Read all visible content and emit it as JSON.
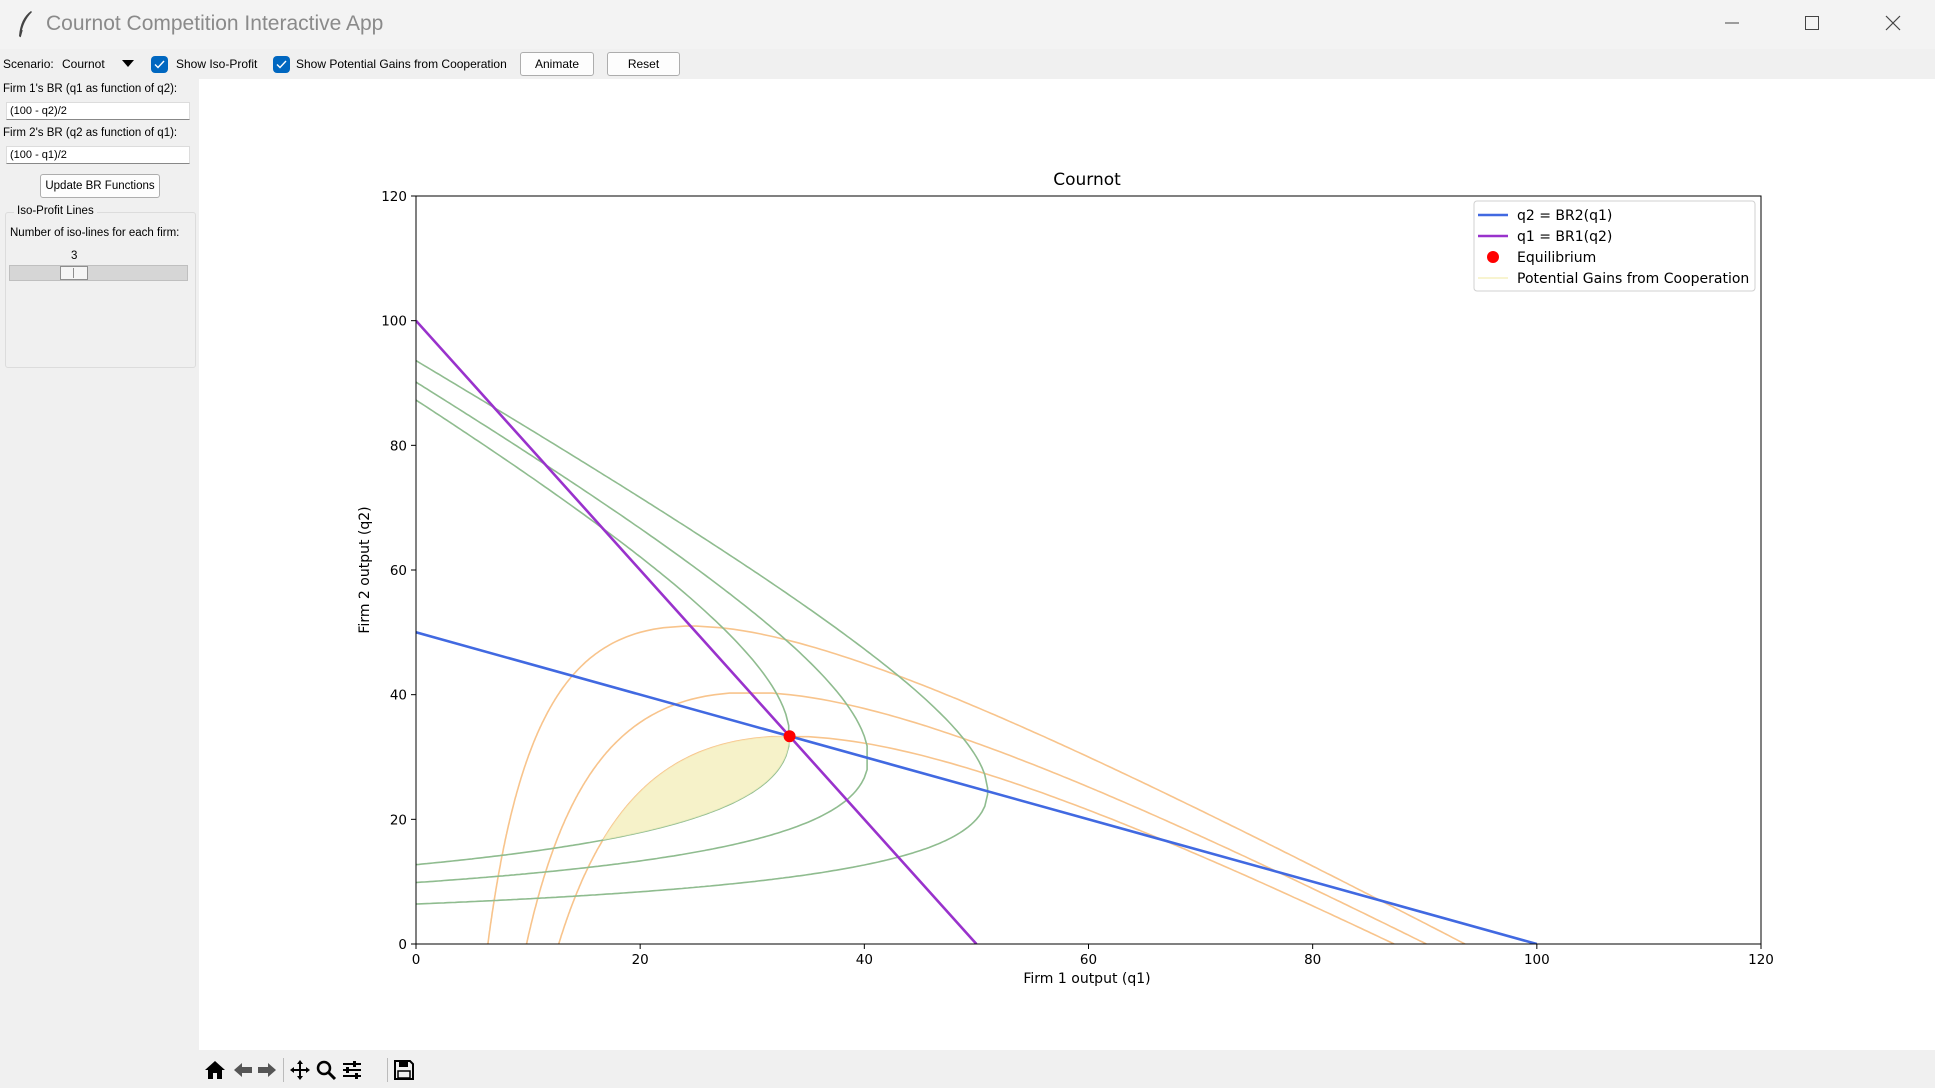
{
  "window": {
    "title": "Cournot Competition Interactive App",
    "icons": [
      "feather-icon",
      "minimize-icon",
      "maximize-icon",
      "close-icon"
    ]
  },
  "toolbar": {
    "scenario_label": "Scenario:",
    "scenario_value": "Cournot",
    "show_iso_profit_label": "Show Iso-Profit",
    "show_iso_profit_checked": true,
    "show_gains_label": "Show Potential Gains from Cooperation",
    "show_gains_checked": true,
    "animate_label": "Animate",
    "reset_label": "Reset"
  },
  "sidebar": {
    "br1_label": "Firm 1's BR (q1 as function of q2):",
    "br1_value": "(100 - q2)/2",
    "br2_label": "Firm 2's BR (q2 as function of q1):",
    "br2_value": "(100 - q1)/2",
    "update_button": "Update BR Functions",
    "iso_group_title": "Iso-Profit Lines",
    "iso_count_label": "Number of iso-lines for each firm:",
    "iso_count_value": "3",
    "iso_count_level": 3
  },
  "nav_toolbar": {
    "icons": [
      "home-icon",
      "back-icon",
      "forward-icon",
      "pan-icon",
      "zoom-icon",
      "configure-icon",
      "save-icon"
    ]
  },
  "colors": {
    "br2": "#4169e1",
    "br1": "#9932cc",
    "equilibrium": "#ff0000",
    "gains": "#f5f0c0",
    "iso_firm1": "#f8c48c",
    "iso_firm2": "#8fbc8f",
    "accent": "#0067c0"
  },
  "chart_data": {
    "type": "line",
    "title": "Cournot",
    "xlabel": "Firm 1 output (q1)",
    "ylabel": "Firm 2 output (q2)",
    "xlim": [
      0,
      120
    ],
    "ylim": [
      0,
      120
    ],
    "xticks": [
      0,
      20,
      40,
      60,
      80,
      100,
      120
    ],
    "yticks": [
      0,
      20,
      40,
      60,
      80,
      100,
      120
    ],
    "grid": false,
    "legend_position": "top-right",
    "legend": [
      "q2 = BR2(q1)",
      "q1 = BR1(q2)",
      "Equilibrium",
      "Potential Gains from Cooperation"
    ],
    "series": [
      {
        "name": "q2 = BR2(q1)",
        "x": [
          0,
          100
        ],
        "y": [
          50,
          0
        ]
      },
      {
        "name": "q1 = BR1(q2)",
        "x": [
          0,
          50
        ],
        "y": [
          100,
          0
        ]
      }
    ],
    "equilibrium": {
      "x": 33.33,
      "y": 33.33
    },
    "iso_profit_firm1_levels": [
      1111.11,
      888.89,
      600
    ],
    "iso_profit_firm2_levels": [
      1111.11,
      888.89,
      600
    ]
  }
}
